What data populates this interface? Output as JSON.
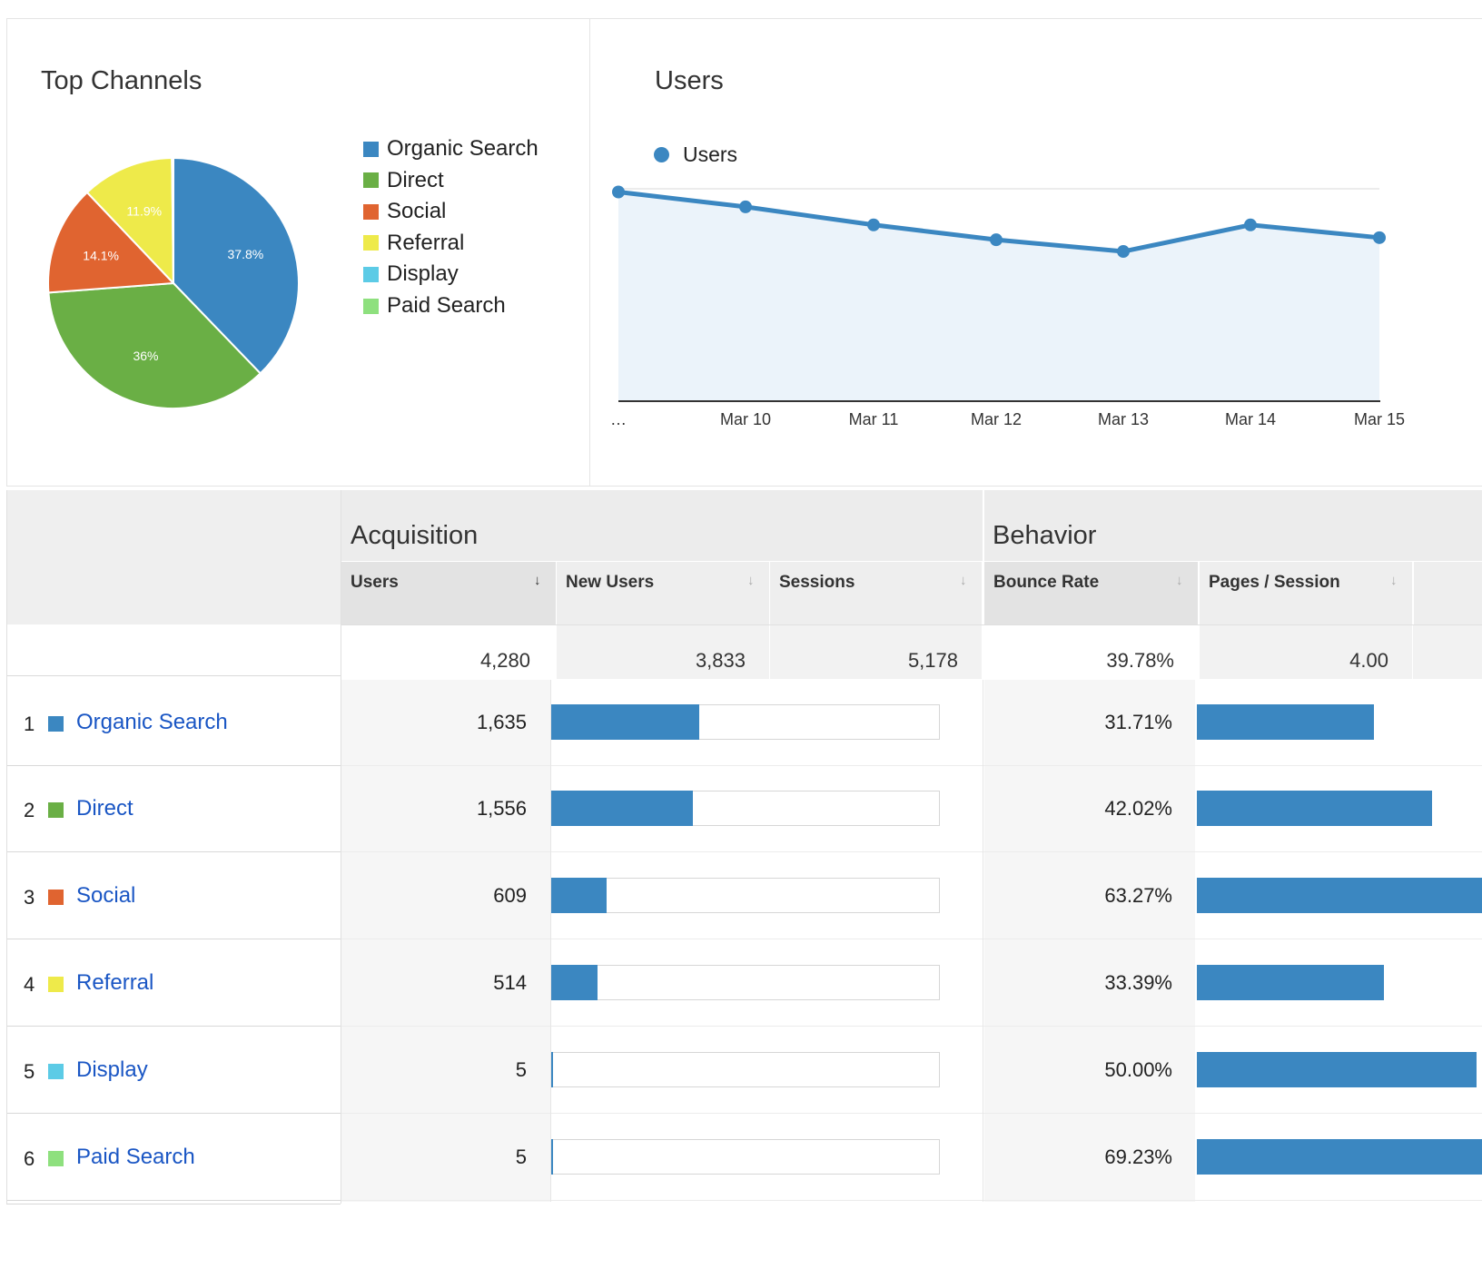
{
  "top_channels": {
    "title": "Top Channels",
    "legend": [
      {
        "label": "Organic Search",
        "color": "#3b87c1"
      },
      {
        "label": "Direct",
        "color": "#6aaf45"
      },
      {
        "label": "Social",
        "color": "#e06430"
      },
      {
        "label": "Referral",
        "color": "#eeea4a"
      },
      {
        "label": "Display",
        "color": "#5ccbe6"
      },
      {
        "label": "Paid Search",
        "color": "#8ee07e"
      }
    ]
  },
  "users_chart": {
    "title": "Users",
    "legend_label": "Users"
  },
  "chart_data": [
    {
      "type": "pie",
      "title": "Top Channels",
      "categories": [
        "Organic Search",
        "Direct",
        "Social",
        "Referral",
        "Display",
        "Paid Search"
      ],
      "values": [
        37.8,
        36,
        14.1,
        11.9,
        0.1,
        0.1
      ],
      "slice_labels": [
        "37.8%",
        "36%",
        "14.1%",
        "11.9%",
        "",
        ""
      ],
      "colors": [
        "#3b87c1",
        "#6aaf45",
        "#e06430",
        "#eeea4a",
        "#5ccbe6",
        "#8ee07e"
      ],
      "legend_position": "right"
    },
    {
      "type": "area",
      "title": "Users",
      "x": [
        "…",
        "Mar 10",
        "Mar 11",
        "Mar 12",
        "Mar 13",
        "Mar 14",
        "Mar 15"
      ],
      "series": [
        {
          "name": "Users",
          "values": [
            985,
            915,
            830,
            760,
            705,
            830,
            770
          ],
          "color": "#3b87c1"
        }
      ],
      "yticks": [
        "1,000",
        "500"
      ],
      "ylim": [
        0,
        1000
      ],
      "grid": true,
      "legend_position": "top-left"
    }
  ],
  "table": {
    "groups": {
      "acquisition": "Acquisition",
      "behavior": "Behavior"
    },
    "columns": [
      {
        "label": "Users",
        "sort": "↓"
      },
      {
        "label": "New Users",
        "sort": "↓"
      },
      {
        "label": "Sessions",
        "sort": "↓"
      },
      {
        "label": "Bounce Rate",
        "sort": "↓"
      },
      {
        "label": "Pages / Session",
        "sort": "↓"
      }
    ],
    "totals": {
      "users": "4,280",
      "new_users": "3,833",
      "sessions": "5,178",
      "bounce_rate": "39.78%",
      "pages_session": "4.00"
    },
    "rows": [
      {
        "num": "1",
        "channel": "Organic Search",
        "color": "#3b87c1",
        "users": "1,635",
        "users_share": 0.382,
        "bounce_rate": "31.71%",
        "bounce_value": 31.71
      },
      {
        "num": "2",
        "channel": "Direct",
        "color": "#6aaf45",
        "users": "1,556",
        "users_share": 0.364,
        "bounce_rate": "42.02%",
        "bounce_value": 42.02
      },
      {
        "num": "3",
        "channel": "Social",
        "color": "#e06430",
        "users": "609",
        "users_share": 0.142,
        "bounce_rate": "63.27%",
        "bounce_value": 63.27
      },
      {
        "num": "4",
        "channel": "Referral",
        "color": "#eeea4a",
        "users": "514",
        "users_share": 0.12,
        "bounce_rate": "33.39%",
        "bounce_value": 33.39
      },
      {
        "num": "5",
        "channel": "Display",
        "color": "#5ccbe6",
        "users": "5",
        "users_share": 0.001,
        "bounce_rate": "50.00%",
        "bounce_value": 50.0
      },
      {
        "num": "6",
        "channel": "Paid Search",
        "color": "#8ee07e",
        "users": "5",
        "users_share": 0.001,
        "bounce_rate": "69.23%",
        "bounce_value": 69.23
      }
    ]
  }
}
